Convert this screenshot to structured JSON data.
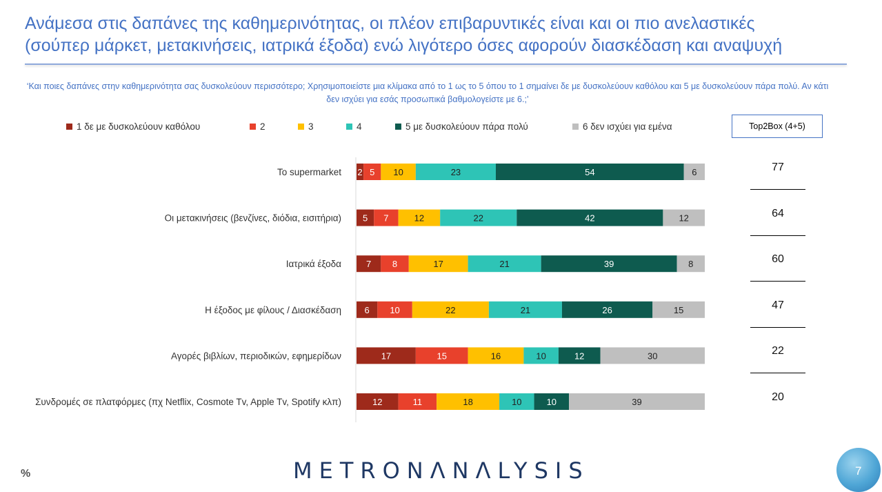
{
  "title": {
    "line1": "Ανάμεσα στις δαπάνες της καθημερινότητας, οι πλέον επιβαρυντικές είναι και οι πιο ανελαστικές",
    "line2": "(σούπερ μάρκετ, μετακινήσεις, ιατρικά έξοδα) ενώ λιγότερο όσες αφορούν διασκέδαση και αναψυχή"
  },
  "question": "‘Και ποιες δαπάνες στην καθημερινότητα σας δυσκολεύουν περισσότερο; Χρησιμοποιείστε μια κλίμακα από το 1 ως το 5 όπου το 1 σημαίνει δε με δυσκολεύουν καθόλου και 5 με δυσκολεύουν πάρα πολύ. Αν κάτι δεν ισχύει για εσάς προσωπικά βαθμολογείστε με 6.;’",
  "top2box_label": "Top2Box (4+5)",
  "footer": {
    "percent_symbol": "%",
    "brand": "METRONΛNΛLYSIS",
    "page_number": "7"
  },
  "chart_data": {
    "type": "bar",
    "orientation": "horizontal",
    "stacked": true,
    "categories": [
      "Το supermarket",
      "Οι μετακινήσεις (βενζίνες, διόδια, εισιτήρια)",
      "Ιατρικά έξοδα",
      "Η έξοδος με φίλους / Διασκέδαση",
      "Αγορές βιβλίων, περιοδικών, εφημερίδων",
      "Συνδρομές σε πλατφόρμες (πχ Netflix, Cosmote Tv, Apple Tv, Spotify κλπ)"
    ],
    "series": [
      {
        "name": "1  δε με δυσκολεύουν καθόλου",
        "color": "#9E2A1B",
        "values": [
          2,
          5,
          7,
          6,
          17,
          12
        ]
      },
      {
        "name": "2",
        "color": "#E8412C",
        "values": [
          5,
          7,
          8,
          10,
          15,
          11
        ]
      },
      {
        "name": "3",
        "color": "#FFC000",
        "values": [
          10,
          12,
          17,
          22,
          16,
          18
        ]
      },
      {
        "name": "4",
        "color": "#2EC4B6",
        "values": [
          23,
          22,
          21,
          21,
          10,
          10
        ]
      },
      {
        "name": "5 με δυσκολεύουν πάρα πολύ",
        "color": "#0E5B4F",
        "values": [
          54,
          42,
          39,
          26,
          12,
          10
        ]
      },
      {
        "name": "6 δεν ισχύει για εμένα",
        "color": "#BFBFBF",
        "values": [
          6,
          12,
          8,
          15,
          30,
          39
        ]
      }
    ],
    "top2box": [
      "77",
      "64",
      "60",
      "47",
      "22",
      "20"
    ],
    "xlim": [
      0,
      100
    ],
    "grid": false,
    "legend_position": "top"
  }
}
